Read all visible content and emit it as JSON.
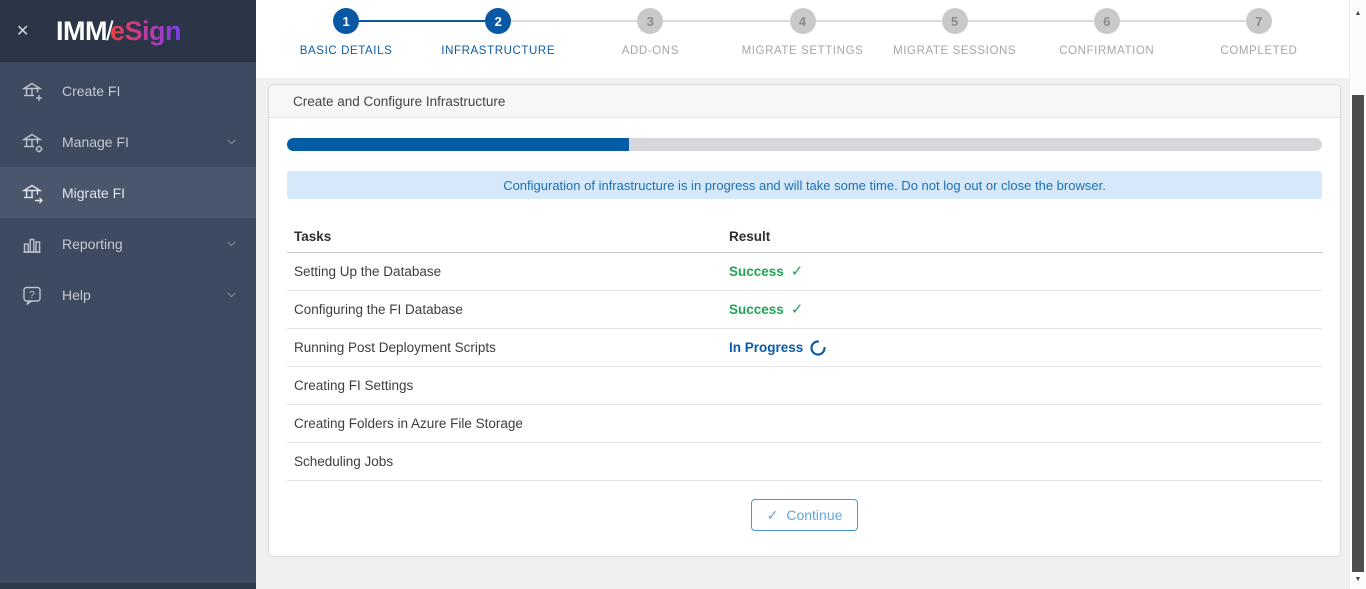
{
  "sidebar": {
    "logo": {
      "imm": "IMM",
      "slash": "/",
      "esign": "eSign"
    },
    "items": [
      {
        "label": "Create FI",
        "icon": "bank-plus-icon",
        "chevron": false,
        "active": false
      },
      {
        "label": "Manage FI",
        "icon": "bank-gear-icon",
        "chevron": true,
        "active": false
      },
      {
        "label": "Migrate FI",
        "icon": "bank-arrow-icon",
        "chevron": false,
        "active": true
      },
      {
        "label": "Reporting",
        "icon": "bar-chart-icon",
        "chevron": true,
        "active": false
      },
      {
        "label": "Help",
        "icon": "help-icon",
        "chevron": true,
        "active": false
      }
    ]
  },
  "stepper": {
    "steps": [
      {
        "number": "1",
        "label": "BASIC DETAILS",
        "state": "active"
      },
      {
        "number": "2",
        "label": "INFRASTRUCTURE",
        "state": "active"
      },
      {
        "number": "3",
        "label": "ADD-ONS",
        "state": "pending"
      },
      {
        "number": "4",
        "label": "MIGRATE SETTINGS",
        "state": "pending"
      },
      {
        "number": "5",
        "label": "MIGRATE SESSIONS",
        "state": "pending"
      },
      {
        "number": "6",
        "label": "CONFIRMATION",
        "state": "pending"
      },
      {
        "number": "7",
        "label": "COMPLETED",
        "state": "pending"
      }
    ]
  },
  "panel": {
    "title": "Create and Configure Infrastructure",
    "progress_percent": 33,
    "banner": "Configuration of infrastructure is in progress and will take some time. Do not log out or close the browser.",
    "table": {
      "headers": {
        "tasks": "Tasks",
        "result": "Result"
      },
      "rows": [
        {
          "task": "Setting Up the Database",
          "result": "Success",
          "status": "success"
        },
        {
          "task": "Configuring the FI Database",
          "result": "Success",
          "status": "success"
        },
        {
          "task": "Running Post Deployment Scripts",
          "result": "In Progress",
          "status": "in-progress"
        },
        {
          "task": "Creating FI Settings",
          "result": "",
          "status": "pending"
        },
        {
          "task": "Creating Folders in Azure File Storage",
          "result": "",
          "status": "pending"
        },
        {
          "task": "Scheduling Jobs",
          "result": "",
          "status": "pending"
        }
      ]
    },
    "continue_button": {
      "label": "Continue",
      "icon": "✓"
    }
  },
  "icons": {
    "close": "✕",
    "success_check": "✓",
    "scroll_up": "▲",
    "scroll_down": "▼"
  },
  "colors": {
    "primary_blue": "#0a57a3",
    "success_green": "#23a455",
    "in_progress_blue": "#0b5ba6",
    "banner_bg": "#d5e9fb",
    "banner_text": "#1b6fb6",
    "progress_fill": "#045ca4",
    "progress_track": "#d5d7da",
    "sidebar_bg": "#3d4a5f",
    "sidebar_header_bg": "#2b3547",
    "sidebar_active_bg": "#49566b",
    "logo_gradient": [
      "#e8433c",
      "#c43b9a",
      "#7a3df0"
    ]
  }
}
